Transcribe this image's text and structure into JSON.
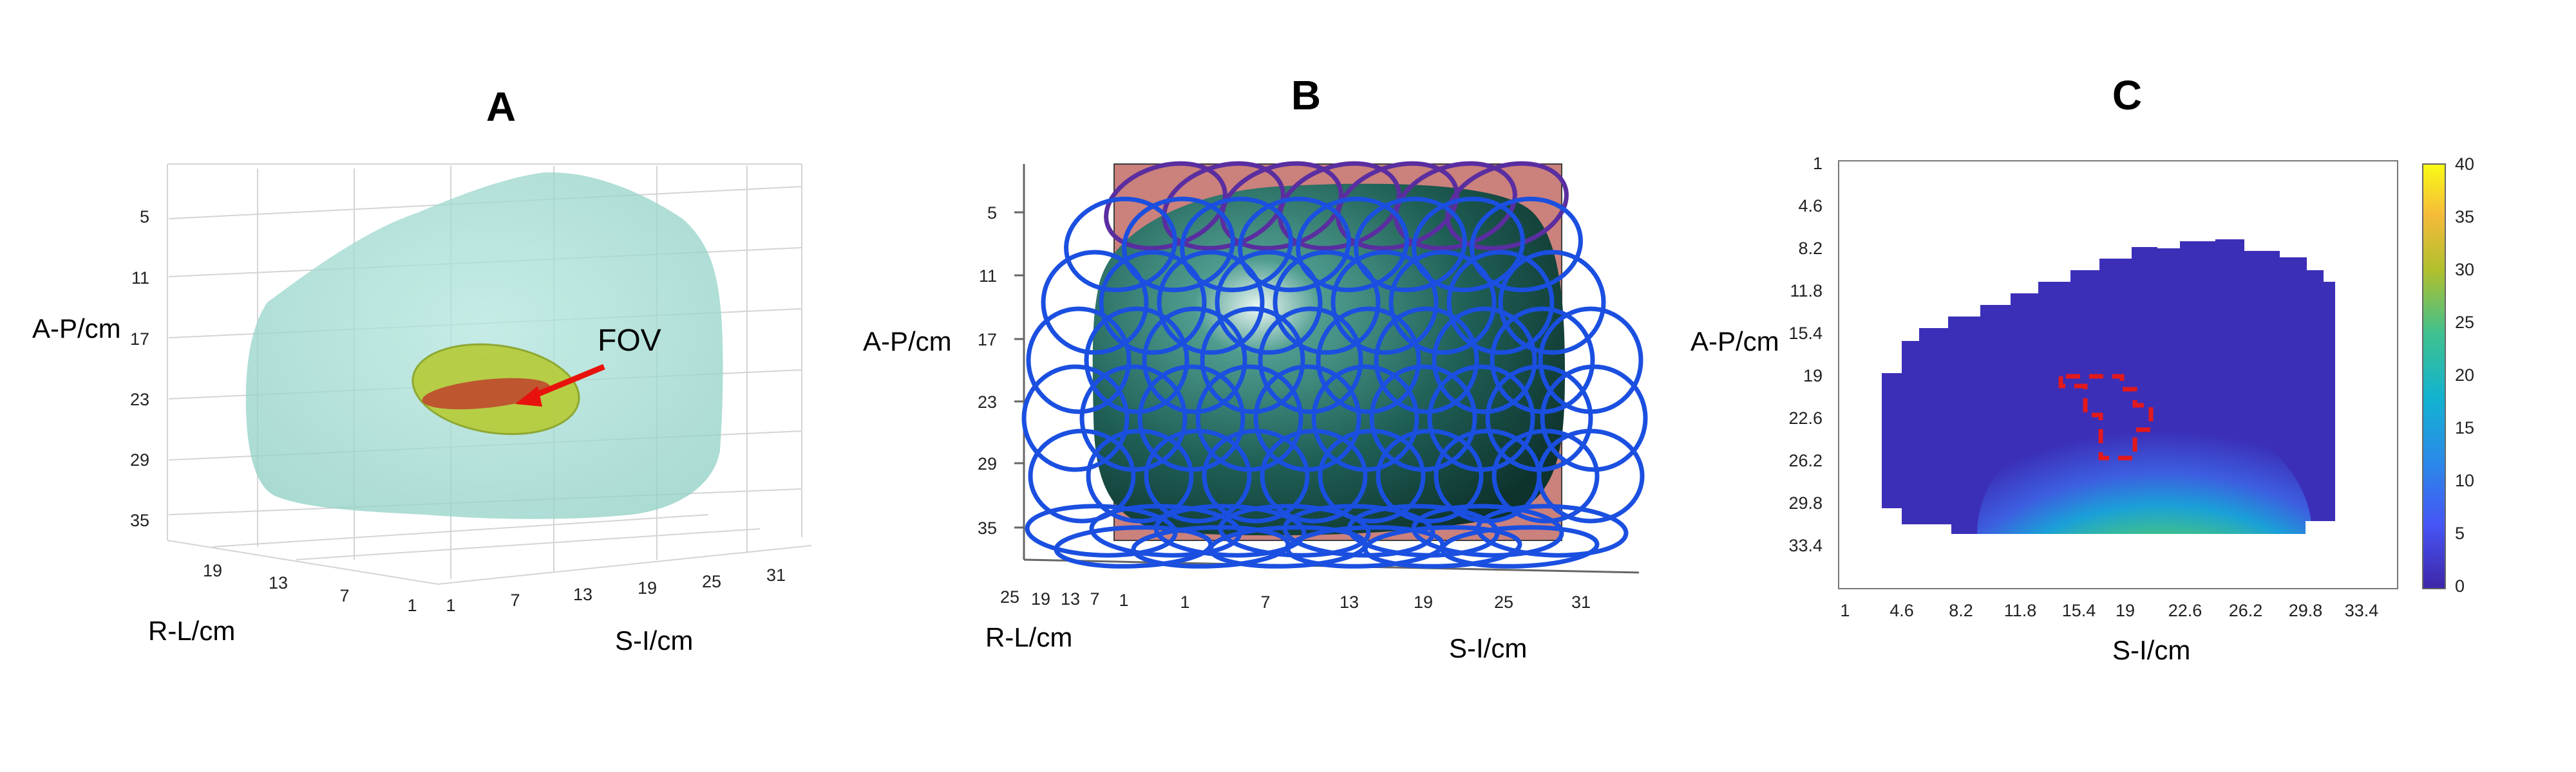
{
  "panels": {
    "a": {
      "title": "A",
      "ylabel": "A-P/cm",
      "xlabel": "S-I/cm",
      "zlabel": "R-L/cm",
      "yticks": [
        "5",
        "11",
        "17",
        "23",
        "29",
        "35"
      ],
      "xticks": [
        "1",
        "7",
        "13",
        "19",
        "25",
        "31"
      ],
      "zticks": [
        "19",
        "13",
        "7",
        "1"
      ],
      "annotation": "FOV",
      "colors": {
        "volume": "#a8dbd3",
        "fov": "#b6cc3a",
        "slice": "#c0392b",
        "arrow": "#e8120c"
      }
    },
    "b": {
      "title": "B",
      "ylabel": "A-P/cm",
      "xlabel": "S-I/cm",
      "zlabel": "R-L/cm",
      "yticks": [
        "5",
        "11",
        "17",
        "23",
        "29",
        "35"
      ],
      "xticks": [
        "1",
        "7",
        "13",
        "19",
        "25",
        "31"
      ],
      "zticks": [
        "25",
        "19",
        "13",
        "7",
        "1"
      ],
      "colors": {
        "plane": "#c97b76",
        "volume": "#1f5f55",
        "coils": "#1a4fe0",
        "coils_top": "#5a2ea0"
      }
    },
    "c": {
      "title": "C",
      "ylabel": "A-P/cm",
      "xlabel": "S-I/cm",
      "yticks": [
        "1",
        "4.6",
        "8.2",
        "11.8",
        "15.4",
        "19",
        "22.6",
        "26.2",
        "29.8",
        "33.4"
      ],
      "xticks": [
        "1",
        "4.6",
        "8.2",
        "11.8",
        "15.4",
        "19",
        "22.6",
        "26.2",
        "29.8",
        "33.4"
      ],
      "colorbar_ticks": [
        "40",
        "35",
        "30",
        "25",
        "20",
        "15",
        "10",
        "5",
        "0"
      ],
      "colorbar_range": [
        0,
        40
      ],
      "colors": {
        "low": "#3b2fb8",
        "high": "#f9f21a",
        "roi": "#e3191c"
      }
    }
  }
}
